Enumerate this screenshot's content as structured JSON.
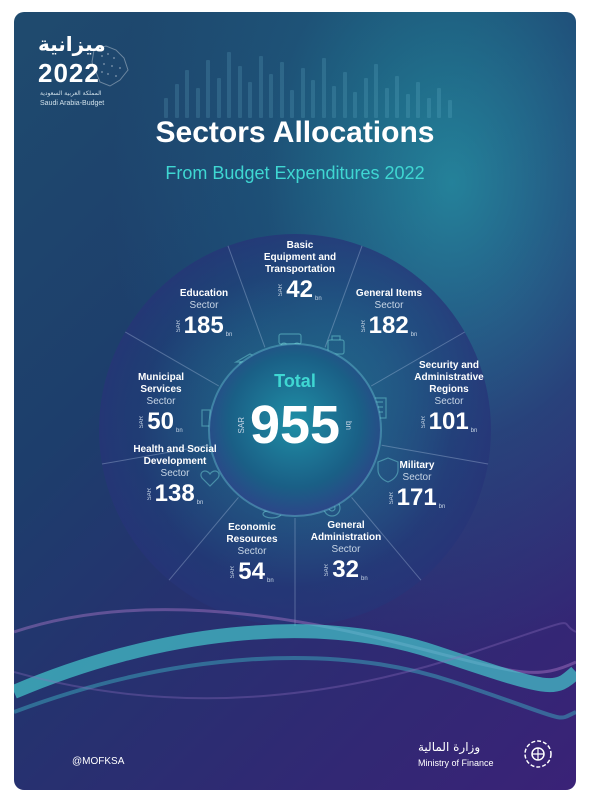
{
  "logo": {
    "arabic": "ميزانية",
    "year": "2022",
    "subtitle_ar": "المملكة العربية السعودية",
    "subtitle_en": "Saudi Arabia-Budget"
  },
  "title": "Sectors Allocations",
  "subtitle": "From Budget Expenditures 2022",
  "total": {
    "label": "Total",
    "currency": "SAR",
    "value": "955",
    "unit": "bn"
  },
  "sectors": [
    {
      "id": "basic",
      "name_lines": [
        "Basic",
        "Equipment and",
        "Transportation"
      ],
      "suffix": "",
      "currency": "SAR",
      "value": "42",
      "unit": "bn"
    },
    {
      "id": "general-items",
      "name_lines": [
        "General Items"
      ],
      "suffix": "Sector",
      "currency": "SAR",
      "value": "182",
      "unit": "bn"
    },
    {
      "id": "security",
      "name_lines": [
        "Security and",
        "Administrative",
        "Regions"
      ],
      "suffix": "Sector",
      "currency": "SAR",
      "value": "101",
      "unit": "bn"
    },
    {
      "id": "military",
      "name_lines": [
        "Military"
      ],
      "suffix": "Sector",
      "currency": "SAR",
      "value": "171",
      "unit": "bn"
    },
    {
      "id": "general-admin",
      "name_lines": [
        "General",
        "Administration"
      ],
      "suffix": "Sector",
      "currency": "SAR",
      "value": "32",
      "unit": "bn"
    },
    {
      "id": "economic",
      "name_lines": [
        "Economic",
        "Resources"
      ],
      "suffix": "Sector",
      "currency": "SAR",
      "value": "54",
      "unit": "bn"
    },
    {
      "id": "health",
      "name_lines": [
        "Health and Social",
        "Development"
      ],
      "suffix": "Sector",
      "currency": "SAR",
      "value": "138",
      "unit": "bn"
    },
    {
      "id": "municipal",
      "name_lines": [
        "Municipal",
        "Services"
      ],
      "suffix": "Sector",
      "currency": "SAR",
      "value": "50",
      "unit": "bn"
    },
    {
      "id": "education",
      "name_lines": [
        "Education"
      ],
      "suffix": "Sector",
      "currency": "SAR",
      "value": "185",
      "unit": "bn"
    }
  ],
  "footer": {
    "handle": "@MOFKSA",
    "ministry_ar": "وزارة المالية",
    "ministry_en": "Ministry of Finance"
  },
  "colors": {
    "accent": "#3fd7d2",
    "background_dark": "#2f2a73",
    "background_teal": "#1f6f86"
  }
}
